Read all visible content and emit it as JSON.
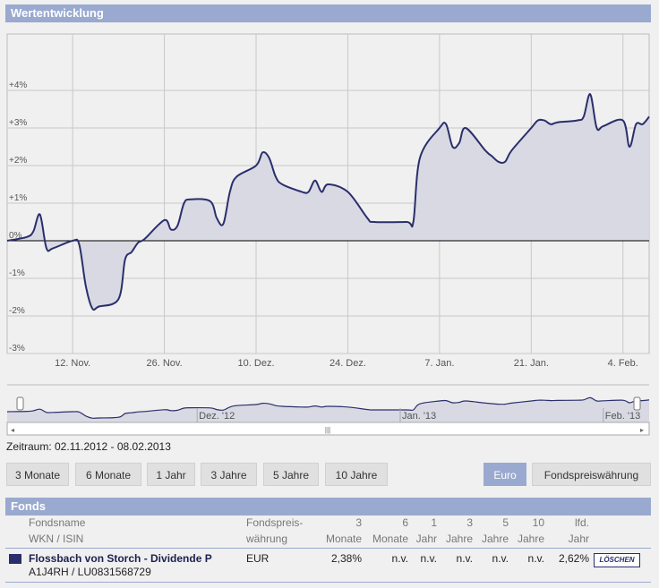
{
  "section_title": "Wertentwicklung",
  "chart_data": {
    "type": "area",
    "title": "",
    "xlabel": "",
    "ylabel": "",
    "ylim": [
      -3,
      5.5
    ],
    "yticks": [
      "+4%",
      "+3%",
      "+2%",
      "+1%",
      "0%",
      "-1%",
      "-2%",
      "-3%"
    ],
    "ytick_values": [
      4,
      3,
      2,
      1,
      0,
      -1,
      -2,
      -3
    ],
    "xlim": [
      "2012-11-02",
      "2013-02-08"
    ],
    "xticks": [
      {
        "label": "12. Nov.",
        "date": "2012-11-12"
      },
      {
        "label": "26. Nov.",
        "date": "2012-11-26"
      },
      {
        "label": "10. Dez.",
        "date": "2012-12-10"
      },
      {
        "label": "24. Dez.",
        "date": "2012-12-24"
      },
      {
        "label": "7. Jan.",
        "date": "2013-01-07"
      },
      {
        "label": "21. Jan.",
        "date": "2013-01-21"
      },
      {
        "label": "4. Feb.",
        "date": "2013-02-04"
      }
    ],
    "grid": true,
    "series": [
      {
        "color": "#2a2f6b",
        "points": [
          [
            "2012-11-02",
            0.0
          ],
          [
            "2012-11-05",
            0.1
          ],
          [
            "2012-11-06",
            0.25
          ],
          [
            "2012-11-07",
            0.7
          ],
          [
            "2012-11-08",
            -0.2
          ],
          [
            "2012-11-09",
            -0.2
          ],
          [
            "2012-11-12",
            0.0
          ],
          [
            "2012-11-13",
            -0.1
          ],
          [
            "2012-11-14",
            -1.2
          ],
          [
            "2012-11-15",
            -1.8
          ],
          [
            "2012-11-16",
            -1.75
          ],
          [
            "2012-11-19",
            -1.55
          ],
          [
            "2012-11-20",
            -0.5
          ],
          [
            "2012-11-21",
            -0.3
          ],
          [
            "2012-11-22",
            -0.05
          ],
          [
            "2012-11-23",
            0.05
          ],
          [
            "2012-11-26",
            0.55
          ],
          [
            "2012-11-27",
            0.3
          ],
          [
            "2012-11-28",
            0.4
          ],
          [
            "2012-11-29",
            1.0
          ],
          [
            "2012-11-30",
            1.1
          ],
          [
            "2012-12-03",
            1.05
          ],
          [
            "2012-12-04",
            0.6
          ],
          [
            "2012-12-05",
            0.45
          ],
          [
            "2012-12-06",
            1.3
          ],
          [
            "2012-12-07",
            1.7
          ],
          [
            "2012-12-10",
            2.0
          ],
          [
            "2012-12-11",
            2.35
          ],
          [
            "2012-12-12",
            2.2
          ],
          [
            "2012-12-13",
            1.7
          ],
          [
            "2012-12-14",
            1.5
          ],
          [
            "2012-12-17",
            1.3
          ],
          [
            "2012-12-18",
            1.3
          ],
          [
            "2012-12-19",
            1.6
          ],
          [
            "2012-12-20",
            1.3
          ],
          [
            "2012-12-21",
            1.5
          ],
          [
            "2012-12-24",
            1.3
          ],
          [
            "2012-12-27",
            0.6
          ],
          [
            "2012-12-28",
            0.5
          ],
          [
            "2013-01-02",
            0.5
          ],
          [
            "2013-01-03",
            0.5
          ],
          [
            "2013-01-04",
            2.2
          ],
          [
            "2013-01-07",
            3.0
          ],
          [
            "2013-01-08",
            3.1
          ],
          [
            "2013-01-09",
            2.5
          ],
          [
            "2013-01-10",
            2.6
          ],
          [
            "2013-01-11",
            3.0
          ],
          [
            "2013-01-14",
            2.4
          ],
          [
            "2013-01-15",
            2.25
          ],
          [
            "2013-01-16",
            2.1
          ],
          [
            "2013-01-17",
            2.1
          ],
          [
            "2013-01-18",
            2.4
          ],
          [
            "2013-01-21",
            3.0
          ],
          [
            "2013-01-22",
            3.2
          ],
          [
            "2013-01-23",
            3.2
          ],
          [
            "2013-01-24",
            3.1
          ],
          [
            "2013-01-25",
            3.15
          ],
          [
            "2013-01-28",
            3.2
          ],
          [
            "2013-01-29",
            3.3
          ],
          [
            "2013-01-30",
            3.9
          ],
          [
            "2013-01-31",
            3.0
          ],
          [
            "2013-02-01",
            3.05
          ],
          [
            "2013-02-04",
            3.2
          ],
          [
            "2013-02-05",
            2.5
          ],
          [
            "2013-02-06",
            3.1
          ],
          [
            "2013-02-07",
            3.1
          ],
          [
            "2013-02-08",
            3.3
          ]
        ]
      }
    ]
  },
  "navigator": {
    "labels": [
      {
        "label": "Dez. '12",
        "date": "2012-12-01"
      },
      {
        "label": "Jan. '13",
        "date": "2013-01-01"
      },
      {
        "label": "Feb. '13",
        "date": "2013-02-01"
      }
    ],
    "scroll_left_icon": "arrow-left-icon",
    "scroll_right_icon": "arrow-right-icon",
    "grip_icon": "grip-icon"
  },
  "zeitraum": "Zeitraum: 02.11.2012 - 08.02.2013",
  "period_buttons": [
    "3 Monate",
    "6 Monate",
    "1 Jahr",
    "3 Jahre",
    "5 Jahre",
    "10 Jahre"
  ],
  "currency_buttons": [
    {
      "label": "Euro",
      "active": true
    },
    {
      "label": "Fondspreiswährung",
      "active": false
    }
  ],
  "accent": "#9aa9cf",
  "fonds": {
    "title": "Fonds",
    "headers": {
      "name1": "Fondsname",
      "name2": "WKN / ISIN",
      "cur1": "Fondspreis-",
      "cur2": "währung",
      "m3a": "3",
      "m3b": "Monate",
      "m6a": "6",
      "m6b": "Monate",
      "y1a": "1",
      "y1b": "Jahr",
      "y3a": "3",
      "y3b": "Jahre",
      "y5a": "5",
      "y5b": "Jahre",
      "y10a": "10",
      "y10b": "Jahre",
      "ytda": "lfd.",
      "ytdb": "Jahr"
    },
    "rows": [
      {
        "color": "#2a2f6b",
        "name": "Flossbach von Storch - Dividende P",
        "ids": "A1J4RH / LU0831568729",
        "currency": "EUR",
        "m3": "2,38%",
        "m6": "n.v.",
        "y1": "n.v.",
        "y3": "n.v.",
        "y5": "n.v.",
        "y10": "n.v.",
        "ytd": "2,62%",
        "delete_label": "LÖSCHEN"
      }
    ]
  }
}
